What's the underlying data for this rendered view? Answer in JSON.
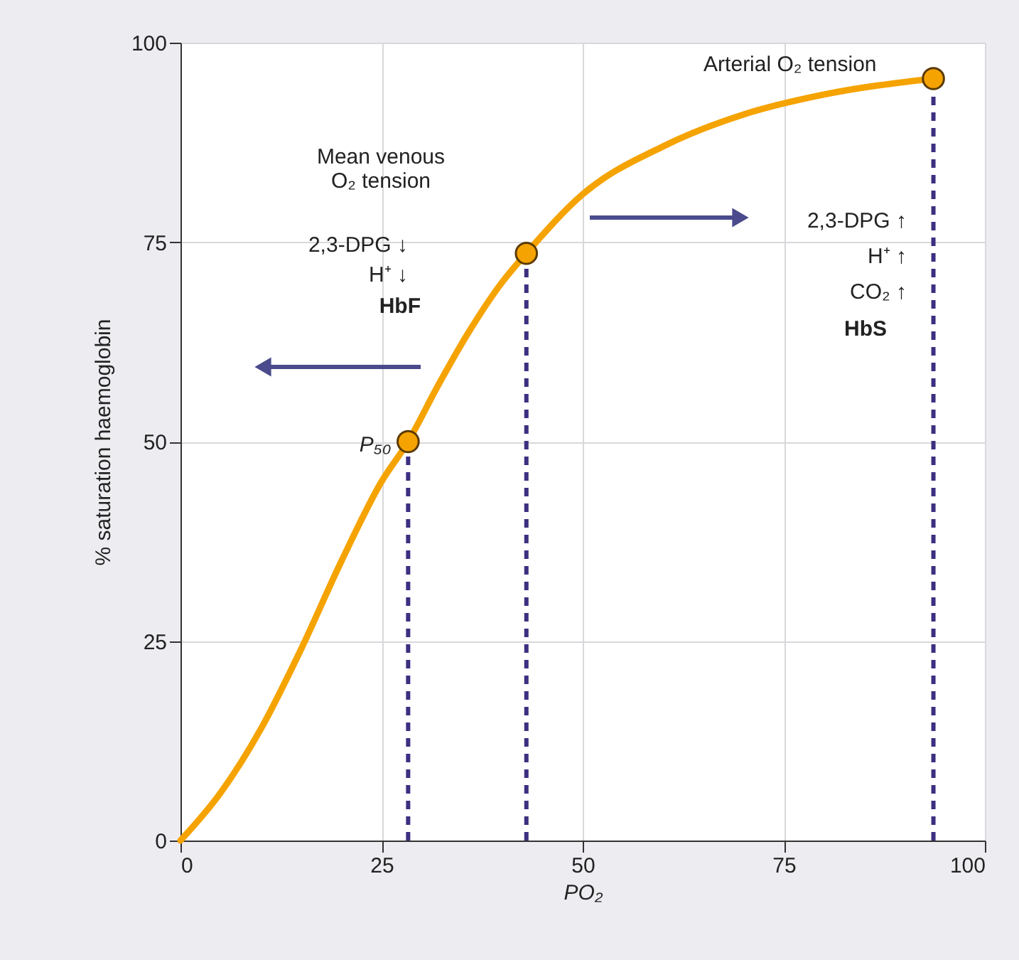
{
  "chart_data": {
    "type": "line",
    "xlabel": "PO₂",
    "ylabel": "% saturation haemoglobin",
    "xlim": [
      0,
      100
    ],
    "ylim": [
      0,
      100
    ],
    "xticks": [
      0,
      25,
      50,
      75,
      100
    ],
    "yticks": [
      0,
      25,
      50,
      75,
      100
    ],
    "grid": true,
    "line_style": "solid",
    "series": [
      {
        "color": "#f5a300",
        "x": [
          0,
          5,
          10,
          15,
          20,
          25,
          28.3,
          32,
          36,
          40,
          43,
          50,
          60,
          70,
          80,
          93.6
        ],
        "values": [
          0,
          6,
          14,
          24,
          35,
          45,
          50,
          57,
          64,
          70,
          73.6,
          81,
          87,
          91,
          93.5,
          95.5
        ]
      },
      {
        "type": "scatter",
        "marker": "circle",
        "color": "#f5a300",
        "x": [
          28.3,
          43,
          93.6
        ],
        "values": [
          50,
          73.6,
          95.5
        ]
      }
    ],
    "ref_lines": [
      {
        "axis": "x",
        "value": 28.3,
        "color": "#3d2f80",
        "line_style": "dashed"
      },
      {
        "axis": "x",
        "value": 43,
        "color": "#3d2f80",
        "line_style": "dashed"
      },
      {
        "axis": "x",
        "value": 93.6,
        "color": "#3d2f80",
        "line_style": "dashed"
      }
    ],
    "annotations": [
      {
        "text": "P₅₀",
        "x": 28.3,
        "y": 50
      },
      "Mean venous\nO₂ tension",
      {
        "text": "Arterial O₂ tension",
        "x": 93.6,
        "y": 95.5
      },
      "2,3-DPG ↓",
      "H⁺ ↓",
      "HbF",
      "2,3-DPG ↑",
      "H⁺ ↑",
      "CO₂ ↑",
      "HbS"
    ]
  }
}
